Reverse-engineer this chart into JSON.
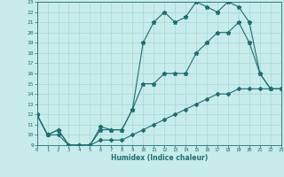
{
  "xlabel": "Humidex (Indice chaleur)",
  "xlim": [
    0,
    23
  ],
  "ylim": [
    9,
    23
  ],
  "yticks": [
    9,
    10,
    11,
    12,
    13,
    14,
    15,
    16,
    17,
    18,
    19,
    20,
    21,
    22,
    23
  ],
  "xticks": [
    0,
    1,
    2,
    3,
    4,
    5,
    6,
    7,
    8,
    9,
    10,
    11,
    12,
    13,
    14,
    15,
    16,
    17,
    18,
    19,
    20,
    21,
    22,
    23
  ],
  "bg_color": "#c8ebeb",
  "line_color": "#1a7070",
  "grid_color": "#a8d8d8",
  "line1_y": [
    12,
    10,
    10.5,
    9,
    9,
    9,
    10.8,
    10.5,
    10.5,
    12.5,
    19,
    21,
    22,
    21,
    21.5,
    23,
    22.5,
    22,
    23,
    22.5,
    21,
    16,
    14.5,
    14.5
  ],
  "line2_y": [
    12,
    10,
    10.5,
    9,
    9,
    9,
    10.5,
    10.5,
    10.5,
    12.5,
    15,
    15,
    16,
    16,
    16,
    18,
    19,
    20,
    20,
    21,
    19,
    16,
    14.5,
    14.5
  ],
  "line3_y": [
    12,
    10,
    10,
    9,
    9,
    9,
    9.5,
    9.5,
    9.5,
    10,
    10.5,
    11,
    11.5,
    12,
    12.5,
    13,
    13.5,
    14,
    14,
    14.5,
    14.5,
    14.5,
    14.5,
    14.5
  ]
}
